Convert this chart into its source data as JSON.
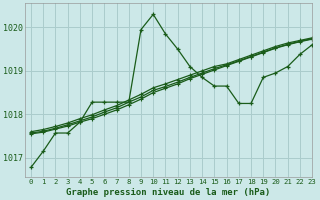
{
  "title": "Graphe pression niveau de la mer (hPa)",
  "bg_color": "#cce8e8",
  "grid_color": "#aacccc",
  "line_color": "#1a5c1a",
  "xlim": [
    -0.5,
    23
  ],
  "ylim": [
    1016.55,
    1020.55
  ],
  "yticks": [
    1017,
    1018,
    1019,
    1020
  ],
  "xticks": [
    0,
    1,
    2,
    3,
    4,
    5,
    6,
    7,
    8,
    9,
    10,
    11,
    12,
    13,
    14,
    15,
    16,
    17,
    18,
    19,
    20,
    21,
    22,
    23
  ],
  "series0": [
    1016.78,
    1017.15,
    1017.57,
    1017.57,
    1017.82,
    1018.28,
    1018.28,
    1018.28,
    1018.28,
    1019.95,
    1020.3,
    1019.85,
    1019.5,
    1019.1,
    1018.85,
    1018.65,
    1018.65,
    1018.25,
    1018.25,
    1018.85,
    1018.95,
    1019.1,
    1019.38,
    1019.6
  ],
  "series1": [
    1017.55,
    1017.59,
    1017.66,
    1017.73,
    1017.82,
    1017.9,
    1018.0,
    1018.1,
    1018.22,
    1018.35,
    1018.5,
    1018.6,
    1018.7,
    1018.82,
    1018.92,
    1019.02,
    1019.12,
    1019.22,
    1019.32,
    1019.42,
    1019.52,
    1019.6,
    1019.67,
    1019.73
  ],
  "series2": [
    1017.57,
    1017.61,
    1017.68,
    1017.76,
    1017.85,
    1017.94,
    1018.05,
    1018.15,
    1018.28,
    1018.4,
    1018.55,
    1018.64,
    1018.74,
    1018.85,
    1018.95,
    1019.05,
    1019.14,
    1019.23,
    1019.33,
    1019.43,
    1019.53,
    1019.61,
    1019.68,
    1019.74
  ],
  "series3": [
    1017.6,
    1017.65,
    1017.72,
    1017.8,
    1017.9,
    1017.99,
    1018.1,
    1018.2,
    1018.33,
    1018.46,
    1018.61,
    1018.7,
    1018.8,
    1018.9,
    1019.0,
    1019.1,
    1019.16,
    1019.26,
    1019.36,
    1019.46,
    1019.56,
    1019.64,
    1019.7,
    1019.76
  ]
}
